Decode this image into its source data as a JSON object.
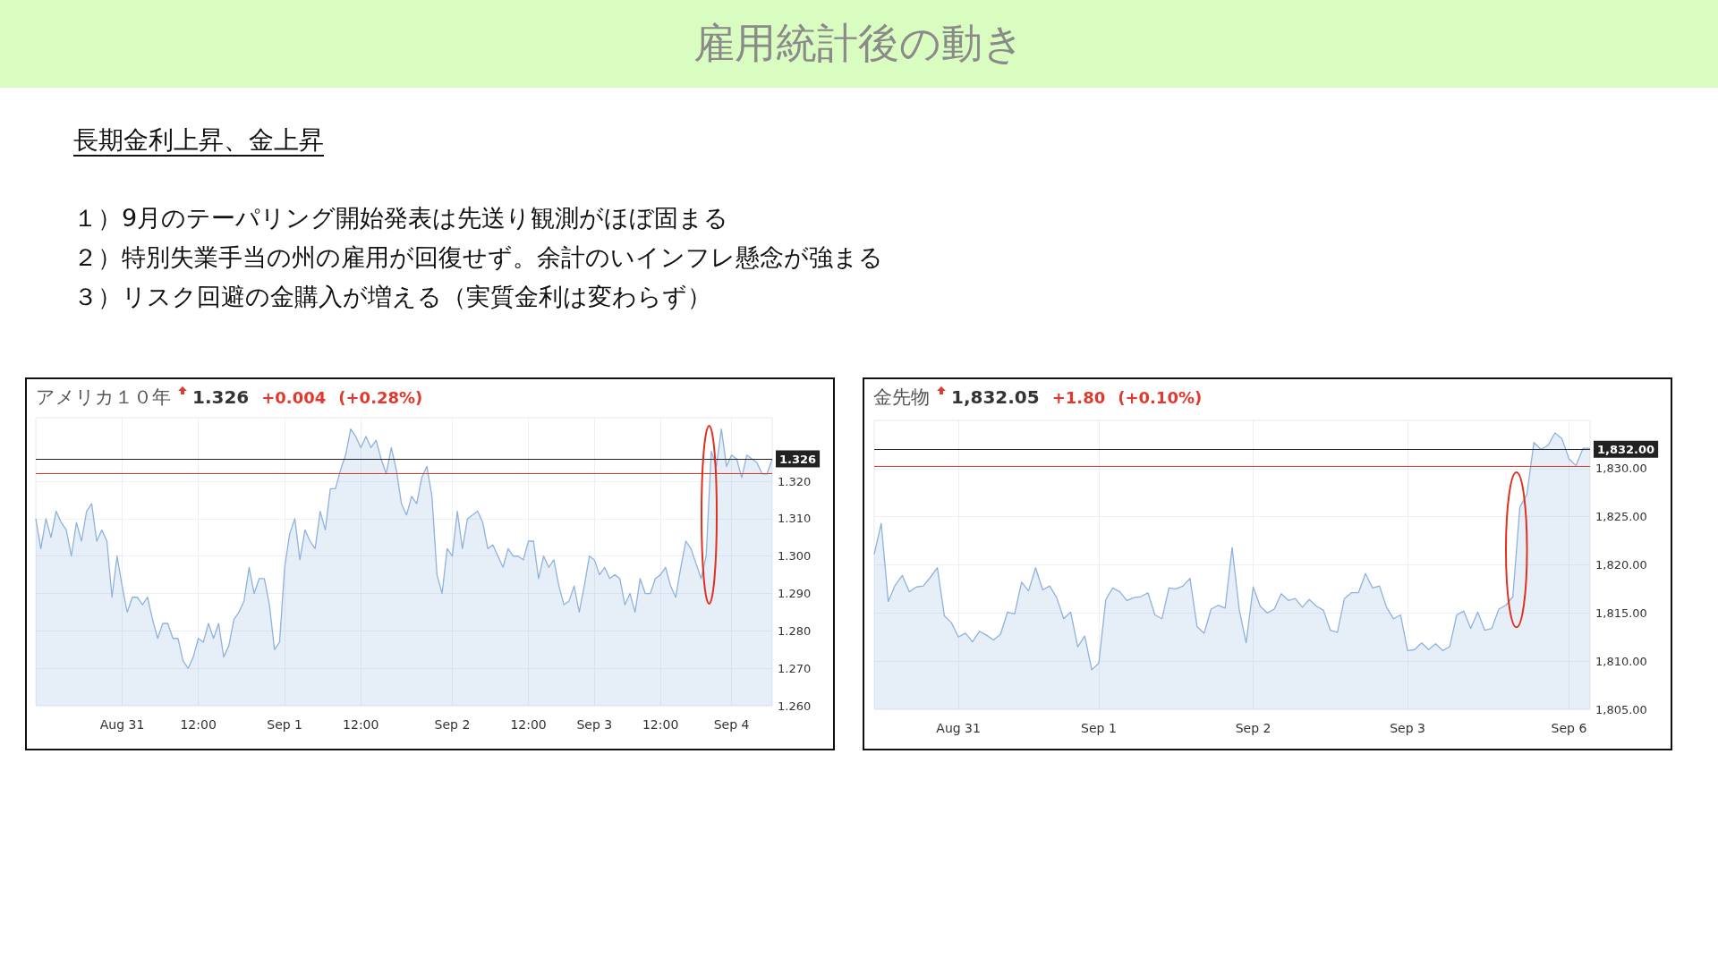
{
  "chart_data": [
    {
      "type": "other",
      "title": "雇用統計後の動き",
      "subtitle": "長期金利上昇、金上昇",
      "annotations": [
        "１）9月のテーパリング開始発表は先送り観測がほぼ固まる",
        "２）特別失業手当の州の雇用が回復せず。余計のいインフレ懸念が強まる",
        "３）リスク回避の金購入が増える（実質金利は変わらず）"
      ]
    },
    {
      "type": "area",
      "title": "アメリカ１０年",
      "annotations": [
        "1.326",
        "+0.004",
        "(+0.28%)"
      ],
      "color": "#8fb2dd",
      "grid": true,
      "categories": [
        null,
        null,
        null,
        null,
        null,
        null,
        null,
        null,
        null,
        null,
        null,
        null,
        null,
        null,
        null,
        null,
        null,
        "Aug 31",
        null,
        null,
        null,
        null,
        null,
        null,
        null,
        null,
        null,
        null,
        null,
        null,
        null,
        null,
        "12:00",
        null,
        null,
        null,
        null,
        null,
        null,
        null,
        null,
        null,
        null,
        null,
        null,
        null,
        null,
        null,
        null,
        "Sep 1",
        null,
        null,
        null,
        null,
        null,
        null,
        null,
        null,
        null,
        null,
        null,
        null,
        null,
        null,
        "12:00",
        null,
        null,
        null,
        null,
        null,
        null,
        null,
        null,
        null,
        null,
        null,
        null,
        null,
        null,
        null,
        null,
        null,
        "Sep 2",
        null,
        null,
        null,
        null,
        null,
        null,
        null,
        null,
        null,
        null,
        null,
        null,
        null,
        null,
        "12:00",
        null,
        null,
        null,
        null,
        null,
        null,
        null,
        null,
        null,
        null,
        null,
        null,
        "Sep 3",
        null,
        null,
        null,
        null,
        null,
        null,
        null,
        null,
        null,
        null,
        null,
        null,
        "12:00",
        null,
        null,
        null,
        null,
        null,
        null,
        null,
        null,
        null,
        null,
        null,
        null,
        null,
        "Sep 4",
        null,
        null,
        null,
        null,
        null,
        null,
        null,
        null
      ],
      "values": [
        1.31,
        1.302,
        1.31,
        1.305,
        1.312,
        1.309,
        1.307,
        1.3,
        1.309,
        1.304,
        1.312,
        1.314,
        1.304,
        1.307,
        1.304,
        1.289,
        1.3,
        1.292,
        1.285,
        1.289,
        1.289,
        1.287,
        1.289,
        1.283,
        1.278,
        1.282,
        1.282,
        1.278,
        1.278,
        1.272,
        1.27,
        1.273,
        1.278,
        1.277,
        1.282,
        1.278,
        1.282,
        1.273,
        1.276,
        1.283,
        1.285,
        1.288,
        1.297,
        1.29,
        1.294,
        1.294,
        1.287,
        1.275,
        1.277,
        1.297,
        1.306,
        1.31,
        1.299,
        1.307,
        1.304,
        1.302,
        1.312,
        1.307,
        1.318,
        1.318,
        1.323,
        1.327,
        1.334,
        1.332,
        1.329,
        1.332,
        1.329,
        1.331,
        1.326,
        1.322,
        1.329,
        1.323,
        1.314,
        1.311,
        1.316,
        1.314,
        1.321,
        1.324,
        1.316,
        1.295,
        1.29,
        1.302,
        1.3,
        1.312,
        1.302,
        1.31,
        1.311,
        1.312,
        1.309,
        1.302,
        1.303,
        1.3,
        1.297,
        1.302,
        1.3,
        1.3,
        1.299,
        1.304,
        1.304,
        1.294,
        1.3,
        1.297,
        1.299,
        1.292,
        1.287,
        1.288,
        1.292,
        1.285,
        1.292,
        1.3,
        1.299,
        1.295,
        1.297,
        1.294,
        1.295,
        1.294,
        1.287,
        1.29,
        1.285,
        1.294,
        1.29,
        1.29,
        1.294,
        1.295,
        1.297,
        1.292,
        1.289,
        1.297,
        1.304,
        1.302,
        1.298,
        1.294,
        1.3,
        1.328,
        1.324,
        1.334,
        1.324,
        1.327,
        1.326,
        1.321,
        1.327,
        1.326,
        1.325,
        1.322,
        1.322,
        1.326
      ],
      "ylim": [
        1.26,
        1.337
      ],
      "yticks": [
        {
          "value": 1.26,
          "label": "1.260"
        },
        {
          "value": 1.27,
          "label": "1.270"
        },
        {
          "value": 1.28,
          "label": "1.280"
        },
        {
          "value": 1.29,
          "label": "1.290"
        },
        {
          "value": 1.3,
          "label": "1.300"
        },
        {
          "value": 1.31,
          "label": "1.310"
        },
        {
          "value": 1.32,
          "label": "1.320"
        }
      ],
      "ref_lines": [
        {
          "axis": "y",
          "value": 1.326,
          "label": "1.326",
          "color": "#222222"
        },
        {
          "axis": "y",
          "value": 1.322,
          "color": "#e03a2f"
        }
      ]
    },
    {
      "type": "area",
      "title": "金先物",
      "annotations": [
        "1,832.05",
        "+1.80",
        "(+0.10%)"
      ],
      "color": "#8fb2dd",
      "grid": true,
      "categories": [
        null,
        null,
        null,
        null,
        null,
        null,
        null,
        null,
        null,
        null,
        null,
        null,
        "Aug 31",
        null,
        null,
        null,
        null,
        null,
        null,
        null,
        null,
        null,
        null,
        null,
        null,
        null,
        null,
        null,
        null,
        null,
        null,
        null,
        "Sep 1",
        null,
        null,
        null,
        null,
        null,
        null,
        null,
        null,
        null,
        null,
        null,
        null,
        null,
        null,
        null,
        null,
        null,
        null,
        null,
        null,
        null,
        "Sep 2",
        null,
        null,
        null,
        null,
        null,
        null,
        null,
        null,
        null,
        null,
        null,
        null,
        null,
        null,
        null,
        null,
        null,
        null,
        null,
        null,
        null,
        "Sep 3",
        null,
        null,
        null,
        null,
        null,
        null,
        null,
        null,
        null,
        null,
        null,
        null,
        null,
        null,
        null,
        null,
        null,
        null,
        null,
        null,
        null,
        null,
        "Sep 6",
        null,
        null,
        null
      ],
      "values": [
        1821.1,
        1824.3,
        1816.2,
        1817.9,
        1818.9,
        1817.2,
        1817.7,
        1817.8,
        1818.7,
        1819.7,
        1814.7,
        1814.0,
        1812.5,
        1812.9,
        1812.0,
        1813.1,
        1812.7,
        1812.2,
        1812.8,
        1815.1,
        1814.9,
        1818.2,
        1817.3,
        1819.7,
        1817.4,
        1817.8,
        1816.6,
        1814.4,
        1815.1,
        1811.5,
        1812.6,
        1809.1,
        1809.8,
        1816.4,
        1817.6,
        1817.2,
        1816.3,
        1816.6,
        1816.7,
        1817.1,
        1814.8,
        1814.4,
        1817.6,
        1817.5,
        1817.8,
        1818.6,
        1813.6,
        1812.9,
        1815.4,
        1815.8,
        1815.5,
        1821.8,
        1815.4,
        1811.9,
        1817.7,
        1815.7,
        1815.0,
        1815.4,
        1817.0,
        1816.3,
        1816.5,
        1815.6,
        1816.4,
        1815.7,
        1815.3,
        1813.2,
        1813.0,
        1816.5,
        1817.1,
        1817.1,
        1819.1,
        1817.6,
        1817.8,
        1815.6,
        1814.4,
        1814.8,
        1811.1,
        1811.2,
        1811.9,
        1811.2,
        1811.8,
        1811.1,
        1811.5,
        1814.8,
        1815.2,
        1813.4,
        1815.1,
        1813.2,
        1813.4,
        1815.4,
        1815.8,
        1816.7,
        1826.0,
        1827.3,
        1832.7,
        1832.0,
        1832.4,
        1833.7,
        1833.1,
        1831.0,
        1830.3,
        1832.1,
        1832.1
      ],
      "ylim": [
        1805,
        1835
      ],
      "yticks": [
        {
          "value": 1805,
          "label": "1,805.00"
        },
        {
          "value": 1810,
          "label": "1,810.00"
        },
        {
          "value": 1815,
          "label": "1,815.00"
        },
        {
          "value": 1820,
          "label": "1,820.00"
        },
        {
          "value": 1825,
          "label": "1,825.00"
        },
        {
          "value": 1830,
          "label": "1,830.00"
        }
      ],
      "ref_lines": [
        {
          "axis": "y",
          "value": 1832,
          "label": "1,832.00",
          "color": "#222222"
        },
        {
          "axis": "y",
          "value": 1830.25,
          "color": "#e03a2f"
        }
      ]
    }
  ]
}
